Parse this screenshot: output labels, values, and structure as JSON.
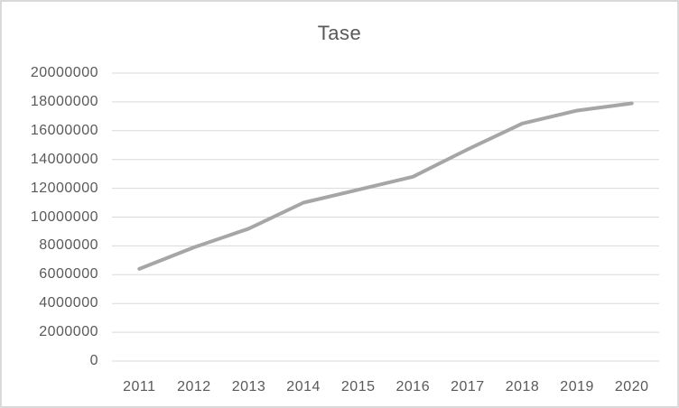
{
  "colors": {
    "series_line": "#a6a6a6",
    "gridline": "#d9d9d9",
    "axis_text": "#595959",
    "title_text": "#595959",
    "chart_border": "#d9d9d9",
    "background": "#ffffff"
  },
  "chart_data": {
    "type": "line",
    "title": "Tase",
    "categories": [
      "2011",
      "2012",
      "2013",
      "2014",
      "2015",
      "2016",
      "2017",
      "2018",
      "2019",
      "2020"
    ],
    "series": [
      {
        "name": "Tase",
        "values": [
          6400000,
          7900000,
          9200000,
          11000000,
          11900000,
          12800000,
          14700000,
          16500000,
          17400000,
          17900000
        ]
      }
    ],
    "xlabel": "",
    "ylabel": "",
    "ylim": [
      0,
      20000000
    ],
    "y_tick_step": 2000000,
    "y_tick_labels": [
      "20000000",
      "18000000",
      "16000000",
      "14000000",
      "12000000",
      "10000000",
      "8000000",
      "6000000",
      "4000000",
      "2000000",
      "0"
    ],
    "grid": "horizontal-only",
    "legend": "none",
    "markers": "none"
  }
}
